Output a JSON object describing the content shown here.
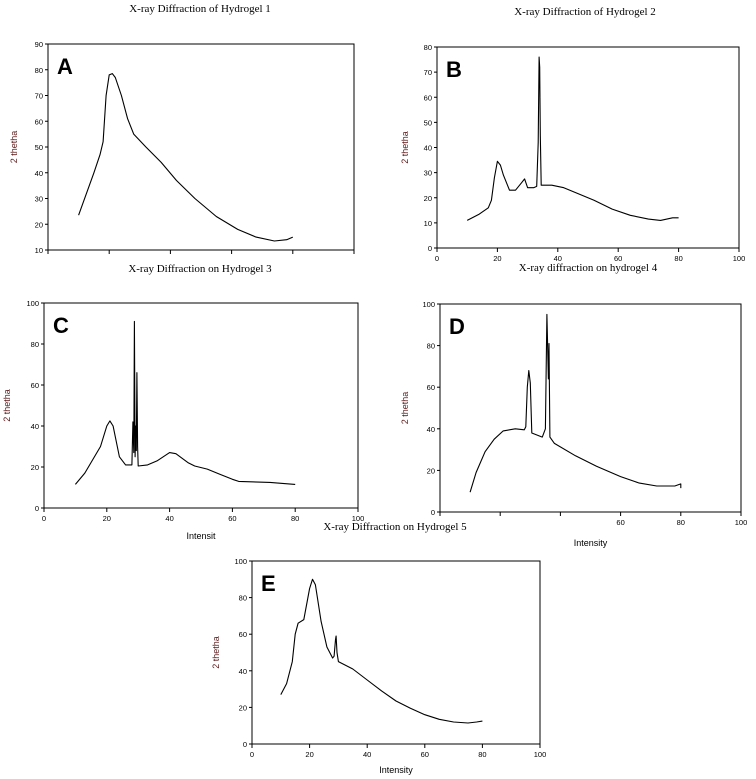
{
  "chart_data": [
    {
      "type": "line",
      "panel_letter": "A",
      "title": "X-ray Diffraction of Hydrogel 1",
      "xlabel": "",
      "ylabel": "2 thetha",
      "xlim": [
        0,
        100
      ],
      "ylim": [
        10,
        90
      ],
      "xticks": [],
      "yticks": [
        10,
        20,
        30,
        40,
        50,
        60,
        70,
        80,
        90
      ],
      "x": [
        10,
        15,
        17,
        18,
        19,
        20,
        21,
        22,
        24,
        26,
        28,
        32,
        37,
        42,
        48,
        55,
        62,
        68,
        74,
        78,
        80
      ],
      "y": [
        23.5,
        40,
        47,
        52,
        70,
        78,
        78.5,
        77,
        70,
        61,
        55,
        50,
        44,
        37,
        30,
        23,
        18,
        15,
        13.5,
        14,
        15
      ]
    },
    {
      "type": "line",
      "panel_letter": "B",
      "title": "X-ray Diffraction of Hydrogel 2",
      "xlabel": "",
      "ylabel": "2 thetha",
      "xlim": [
        0,
        100
      ],
      "ylim": [
        0,
        80
      ],
      "xticks": [
        0,
        20,
        40,
        60,
        80,
        100
      ],
      "yticks": [
        0,
        10,
        20,
        30,
        40,
        50,
        60,
        70,
        80
      ],
      "x": [
        10,
        14,
        17,
        18,
        19,
        20,
        21,
        22,
        24,
        26,
        28,
        29,
        30,
        32,
        33,
        33.5,
        33.8,
        34,
        34.2,
        34.5,
        38,
        42,
        46,
        52,
        58,
        64,
        70,
        74,
        78,
        80
      ],
      "y": [
        11,
        13.5,
        16,
        19,
        28,
        34.5,
        33,
        29,
        23,
        23,
        26,
        27.5,
        24,
        24,
        24.5,
        42,
        76,
        72,
        45,
        25,
        25,
        24,
        22,
        19,
        15.5,
        13,
        11.5,
        11,
        12,
        12
      ]
    },
    {
      "type": "line",
      "panel_letter": "C",
      "title": "X-ray Diffraction on Hydrogel 3",
      "xlabel": "Intensit",
      "ylabel": "2 thetha",
      "xlim": [
        0,
        100
      ],
      "ylim": [
        0,
        100
      ],
      "xticks": [
        0,
        20,
        40,
        60,
        80,
        100
      ],
      "yticks": [
        0,
        20,
        40,
        60,
        80,
        100
      ],
      "x": [
        10,
        13,
        18,
        20,
        21,
        22,
        24,
        26,
        28,
        28.3,
        28.6,
        28.8,
        29,
        29.2,
        29.4,
        29.6,
        29.8,
        30,
        33,
        36,
        40,
        42,
        46,
        48,
        52,
        56,
        60,
        62,
        72,
        80
      ],
      "y": [
        11.5,
        17,
        30,
        40,
        42.5,
        40,
        25,
        21,
        21,
        42,
        27,
        91,
        25,
        40,
        28,
        66,
        30,
        20.5,
        21,
        23,
        27,
        26.5,
        22,
        20.5,
        19,
        16.5,
        14,
        13,
        12.5,
        11.5
      ]
    },
    {
      "type": "line",
      "panel_letter": "D",
      "title": "X-ray diffraction on hydrogel 4",
      "xlabel": "Intensity",
      "ylabel": "2 thetha",
      "xlim": [
        0,
        100
      ],
      "ylim": [
        0,
        100
      ],
      "xticks": [
        60,
        80,
        100
      ],
      "yticks": [
        0,
        20,
        40,
        60,
        80,
        100
      ],
      "x": [
        10,
        12,
        15,
        18,
        21,
        25,
        28,
        28.5,
        29,
        29.5,
        30,
        30.5,
        34,
        35,
        35.5,
        36,
        36.2,
        36.5,
        38,
        45,
        52,
        60,
        66,
        72,
        78,
        80,
        80
      ],
      "y": [
        9.5,
        19,
        29,
        35,
        39,
        40,
        39.5,
        41,
        60,
        68,
        62,
        38,
        36,
        40,
        95,
        64,
        81,
        36,
        33,
        27,
        22,
        17,
        14,
        12.5,
        12.5,
        13.5,
        11.5
      ]
    },
    {
      "type": "line",
      "panel_letter": "E",
      "title": "X-ray Diffraction on Hydrogel 5",
      "xlabel": "Intensity",
      "ylabel": "2 thetha",
      "xlim": [
        0,
        100
      ],
      "ylim": [
        0,
        100
      ],
      "xticks": [
        0,
        20,
        40,
        60,
        80,
        100
      ],
      "yticks": [
        0,
        20,
        40,
        60,
        80,
        100
      ],
      "x": [
        10,
        12,
        14,
        15,
        16,
        18,
        20,
        21,
        22,
        24,
        26,
        28,
        28.5,
        29,
        29.2,
        29.5,
        30,
        35,
        40,
        45,
        50,
        55,
        60,
        65,
        70,
        75,
        78,
        80
      ],
      "y": [
        27,
        33,
        45,
        60,
        66,
        68,
        85,
        90,
        87,
        67,
        53,
        47,
        48,
        57,
        59,
        50,
        45,
        41,
        35,
        29,
        23.5,
        19.5,
        16,
        13.5,
        12,
        11.5,
        12,
        12.5
      ]
    }
  ]
}
